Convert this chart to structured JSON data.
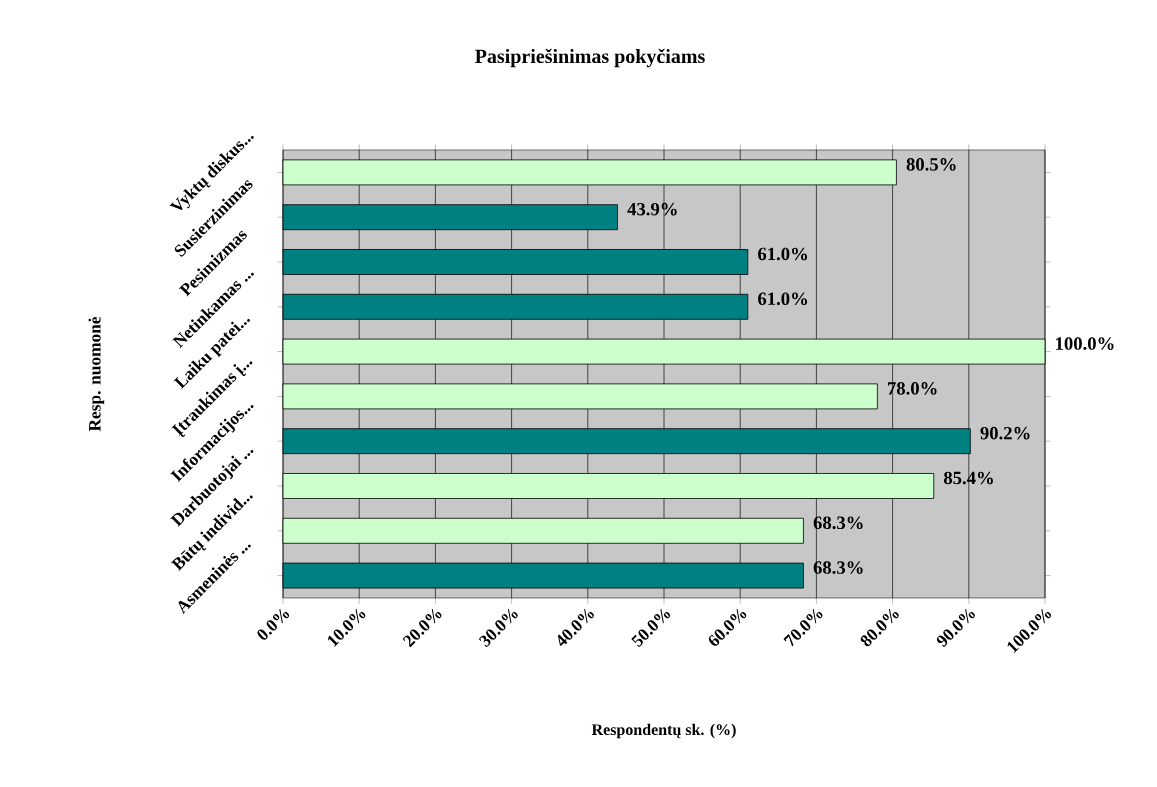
{
  "chart_data": {
    "type": "bar",
    "orientation": "horizontal",
    "title": "Pasipriešinimas pokyčiams",
    "xlabel": "Respondentų sk. (%)",
    "ylabel": "Resp. nuomonė",
    "categories": [
      "Vyktų diskus...",
      "Susierzinimas",
      "Pesimizmas",
      "Netinkamas ...",
      "Laiku patei...",
      "Įtraukimas į...",
      "Informacijos...",
      "Darbuotojai ...",
      "Būtų individ...",
      "Asmeninės ..."
    ],
    "values": [
      80.5,
      43.9,
      61.0,
      61.0,
      100.0,
      78.0,
      90.2,
      85.4,
      68.3,
      68.3
    ],
    "value_labels": [
      "80.5%",
      "43.9%",
      "61.0%",
      "61.0%",
      "100.0%",
      "78.0%",
      "90.2%",
      "85.4%",
      "68.3%",
      "68.3%"
    ],
    "colors": [
      "#ccffcc",
      "#008080",
      "#008080",
      "#008080",
      "#ccffcc",
      "#ccffcc",
      "#008080",
      "#ccffcc",
      "#ccffcc",
      "#008080"
    ],
    "xlim": [
      0,
      100
    ],
    "xticks": [
      {
        "value": 0,
        "label": "0.0%"
      },
      {
        "value": 10,
        "label": "10.0%"
      },
      {
        "value": 20,
        "label": "20.0%"
      },
      {
        "value": 30,
        "label": "30.0%"
      },
      {
        "value": 40,
        "label": "40.0%"
      },
      {
        "value": 50,
        "label": "50.0%"
      },
      {
        "value": 60,
        "label": "60.0%"
      },
      {
        "value": 70,
        "label": "70.0%"
      },
      {
        "value": 80,
        "label": "80.0%"
      },
      {
        "value": 90,
        "label": "90.0%"
      },
      {
        "value": 100,
        "label": "100.0%"
      }
    ],
    "grid": "x"
  }
}
